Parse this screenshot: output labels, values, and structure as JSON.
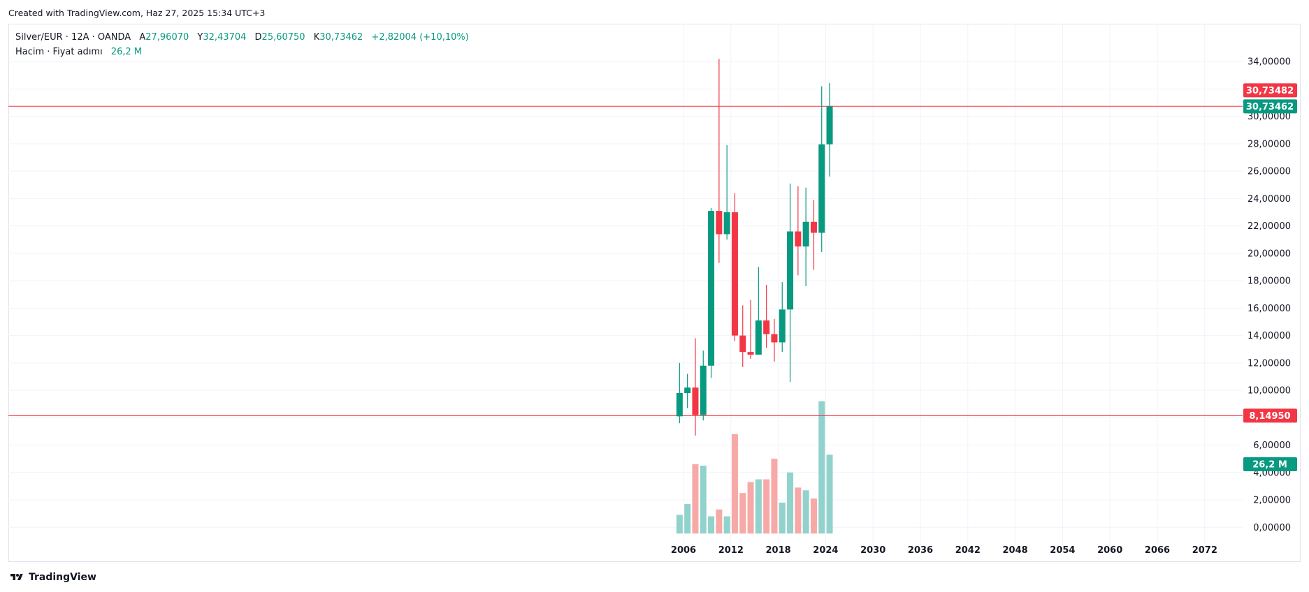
{
  "header": {
    "text": "Created with TradingView.com, Haz 27, 2025 15:34 UTC+3"
  },
  "legend": {
    "symbol": "Silver/EUR · 12A · OANDA",
    "open_label": "A",
    "open_value": "27,96070",
    "high_label": "Y",
    "high_value": "32,43704",
    "low_label": "D",
    "low_value": "25,60750",
    "close_label": "K",
    "close_value": "30,73462",
    "change": "+2,82004 (+10,10%)",
    "volume_label": "Hacim · Fiyat adımı",
    "volume_value": "26,2 M"
  },
  "price_tags": {
    "top_red": "30,73482",
    "last": "30,73462",
    "low_red": "8,14950",
    "volume": "26,2 M"
  },
  "footer": {
    "brand": "TradingView"
  },
  "colors": {
    "up": "#089981",
    "down": "#f23645",
    "up_vol": "#92d2cc",
    "down_vol": "#f7a9a7",
    "grid": "#f0f3fa"
  },
  "chart_data": {
    "type": "candlestick",
    "title": "Silver/EUR · 12A · OANDA",
    "ylim": [
      0,
      36
    ],
    "y_ticks": [
      "0,00000",
      "2,00000",
      "4,00000",
      "6,00000",
      "8,00000",
      "10,00000",
      "12,00000",
      "14,00000",
      "16,00000",
      "18,00000",
      "20,00000",
      "22,00000",
      "24,00000",
      "26,00000",
      "28,00000",
      "30,00000",
      "32,00000",
      "34,00000"
    ],
    "x_ticks": [
      "2006",
      "2012",
      "2018",
      "2024",
      "2030",
      "2036",
      "2042",
      "2048",
      "2054",
      "2060",
      "2066",
      "2072"
    ],
    "horizontal_lines": [
      30.7348,
      8.1495
    ],
    "candles": [
      {
        "year": 2005,
        "open": 8.1,
        "high": 12.0,
        "low": 7.6,
        "close": 9.8
      },
      {
        "year": 2006,
        "open": 9.8,
        "high": 11.2,
        "low": 8.7,
        "close": 10.2
      },
      {
        "year": 2007,
        "open": 10.2,
        "high": 13.8,
        "low": 6.7,
        "close": 8.2
      },
      {
        "year": 2008,
        "open": 8.2,
        "high": 12.9,
        "low": 7.8,
        "close": 11.8
      },
      {
        "year": 2009,
        "open": 11.8,
        "high": 23.3,
        "low": 10.9,
        "close": 23.1
      },
      {
        "year": 2010,
        "open": 23.1,
        "high": 34.2,
        "low": 19.3,
        "close": 21.4
      },
      {
        "year": 2011,
        "open": 21.4,
        "high": 27.9,
        "low": 21.0,
        "close": 23.0
      },
      {
        "year": 2012,
        "open": 23.0,
        "high": 24.4,
        "low": 13.6,
        "close": 14.0
      },
      {
        "year": 2013,
        "open": 14.0,
        "high": 16.2,
        "low": 11.7,
        "close": 12.8
      },
      {
        "year": 2014,
        "open": 12.8,
        "high": 16.6,
        "low": 12.3,
        "close": 12.6
      },
      {
        "year": 2015,
        "open": 12.6,
        "high": 19.0,
        "low": 12.6,
        "close": 15.1
      },
      {
        "year": 2016,
        "open": 15.1,
        "high": 17.7,
        "low": 13.1,
        "close": 14.1
      },
      {
        "year": 2017,
        "open": 14.1,
        "high": 15.2,
        "low": 12.1,
        "close": 13.5
      },
      {
        "year": 2018,
        "open": 13.5,
        "high": 17.9,
        "low": 12.8,
        "close": 15.9
      },
      {
        "year": 2019,
        "open": 15.9,
        "high": 25.1,
        "low": 10.6,
        "close": 21.6
      },
      {
        "year": 2020,
        "open": 21.6,
        "high": 24.9,
        "low": 18.4,
        "close": 20.5
      },
      {
        "year": 2021,
        "open": 20.5,
        "high": 24.8,
        "low": 17.6,
        "close": 22.3
      },
      {
        "year": 2022,
        "open": 22.3,
        "high": 23.9,
        "low": 18.8,
        "close": 21.5
      },
      {
        "year": 2023,
        "open": 21.5,
        "high": 32.2,
        "low": 20.1,
        "close": 27.96
      },
      {
        "year": 2024,
        "open": 27.96,
        "high": 32.44,
        "low": 25.61,
        "close": 30.73
      }
    ],
    "volume_series": {
      "name": "Hacim",
      "units_note": "relative height on price scale",
      "values": [
        0.9,
        1.7,
        4.6,
        4.5,
        0.8,
        1.3,
        0.8,
        6.8,
        2.5,
        3.3,
        3.5,
        3.5,
        5.0,
        1.8,
        4.0,
        2.9,
        2.7,
        2.1,
        9.2,
        5.3
      ]
    }
  }
}
